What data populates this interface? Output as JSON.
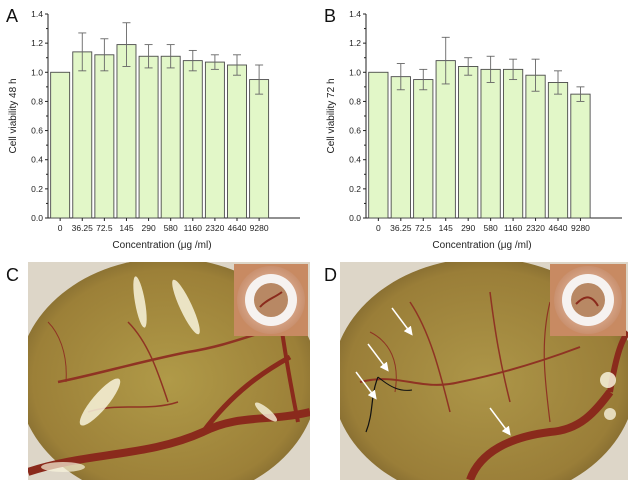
{
  "panels": {
    "a": "A",
    "b": "B",
    "c": "C",
    "d": "D"
  },
  "chart_data": [
    {
      "type": "bar",
      "panel": "A",
      "xlabel": "Concentration (μg /ml)",
      "ylabel": "Cell viability 48 h",
      "categories": [
        "0",
        "36.25",
        "72.5",
        "145",
        "290",
        "580",
        "1160",
        "2320",
        "4640",
        "9280"
      ],
      "values": [
        1.0,
        1.14,
        1.12,
        1.19,
        1.11,
        1.11,
        1.08,
        1.07,
        1.05,
        0.95
      ],
      "errors": [
        0.0,
        0.13,
        0.11,
        0.15,
        0.08,
        0.08,
        0.07,
        0.05,
        0.07,
        0.1
      ],
      "ylim": [
        0.0,
        1.4
      ],
      "yticks": [
        "0.0",
        "0.2",
        "0.4",
        "0.6",
        "0.8",
        "1.0",
        "1.2",
        "1.4"
      ],
      "bar_color": "#e2f7c8",
      "bar_edge": "#4a4a4a"
    },
    {
      "type": "bar",
      "panel": "B",
      "xlabel": "Concentration (μg /ml)",
      "ylabel": "Cell viability 72 h",
      "categories": [
        "0",
        "36.25",
        "72.5",
        "145",
        "290",
        "580",
        "1160",
        "2320",
        "4640",
        "9280"
      ],
      "values": [
        1.0,
        0.97,
        0.95,
        1.08,
        1.04,
        1.02,
        1.02,
        0.98,
        0.93,
        0.85
      ],
      "errors": [
        0.0,
        0.09,
        0.07,
        0.16,
        0.06,
        0.09,
        0.07,
        0.11,
        0.08,
        0.05
      ],
      "ylim": [
        0.0,
        1.4
      ],
      "yticks": [
        "0.0",
        "0.2",
        "0.4",
        "0.6",
        "0.8",
        "1.0",
        "1.2",
        "1.4"
      ],
      "bar_color": "#e2f7c8",
      "bar_edge": "#4a4a4a"
    }
  ],
  "colors": {
    "egg_membrane": "#a88a3c",
    "vessel": "#8a2a1c",
    "border": "#c9c0b0"
  }
}
